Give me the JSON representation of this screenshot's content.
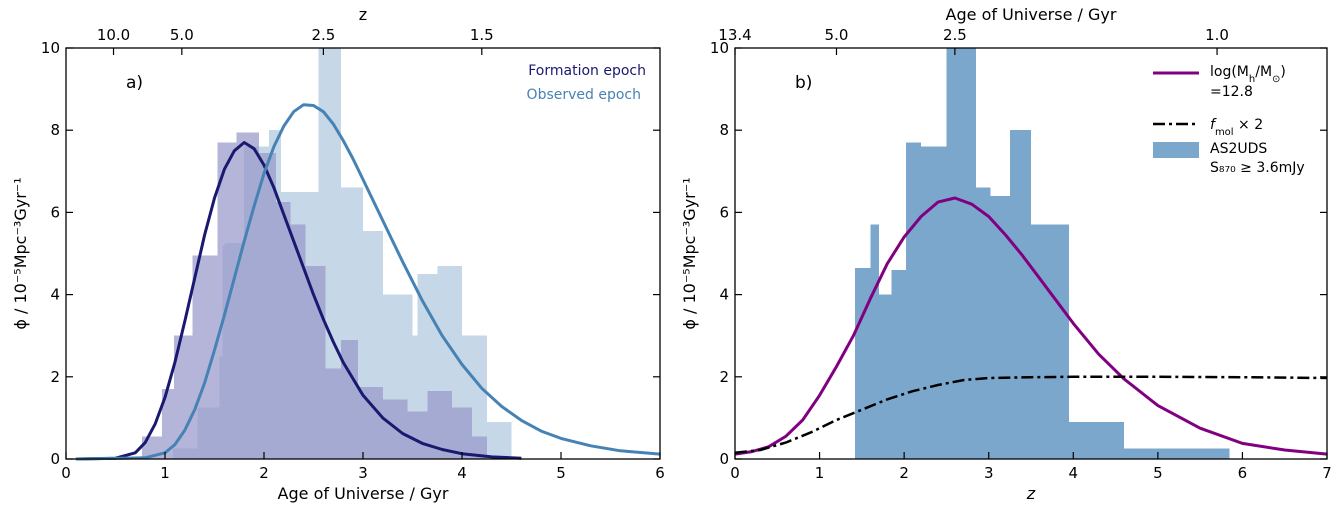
{
  "chart_data": [
    {
      "type": "bar",
      "panel_label": "a)",
      "xlabel": "Age of Universe / Gyr",
      "ylabel": "ϕ / 10⁻⁵Mpc⁻³Gyr⁻¹",
      "top_axis_label": "z",
      "xlim": [
        0,
        6
      ],
      "ylim": [
        0,
        10
      ],
      "x_ticks": [
        0,
        1,
        2,
        3,
        4,
        5,
        6
      ],
      "x_tick_labels": [
        "0",
        "1",
        "2",
        "3",
        "4",
        "5",
        "6"
      ],
      "y_ticks": [
        0,
        2,
        4,
        6,
        8,
        10
      ],
      "y_tick_labels": [
        "0",
        "2",
        "4",
        "6",
        "8",
        "10"
      ],
      "top_ticks": [
        {
          "label": "10.0",
          "x": 0.48
        },
        {
          "label": "5.0",
          "x": 1.17
        },
        {
          "label": "2.5",
          "x": 2.6
        },
        {
          "label": "1.5",
          "x": 4.2
        }
      ],
      "grid": false,
      "legend_placement": "top-right",
      "legend": [
        {
          "name": "Formation epoch",
          "color": "#191970"
        },
        {
          "name": "Observed epoch",
          "color": "#4682B4"
        }
      ],
      "histograms": [
        {
          "name": "Formation epoch",
          "color": "#9999CC",
          "bins": [
            {
              "x0": 0.77,
              "x1": 0.97,
              "y": 0.55
            },
            {
              "x0": 0.97,
              "x1": 1.09,
              "y": 1.7
            },
            {
              "x0": 1.09,
              "x1": 1.28,
              "y": 3.0
            },
            {
              "x0": 1.28,
              "x1": 1.53,
              "y": 4.95
            },
            {
              "x0": 1.53,
              "x1": 1.72,
              "y": 7.7
            },
            {
              "x0": 1.72,
              "x1": 1.95,
              "y": 7.95
            },
            {
              "x0": 1.95,
              "x1": 2.12,
              "y": 7.45
            },
            {
              "x0": 2.12,
              "x1": 2.27,
              "y": 6.25
            },
            {
              "x0": 2.27,
              "x1": 2.42,
              "y": 5.7
            },
            {
              "x0": 2.42,
              "x1": 2.62,
              "y": 4.7
            },
            {
              "x0": 2.62,
              "x1": 2.78,
              "y": 2.2
            },
            {
              "x0": 2.78,
              "x1": 2.95,
              "y": 2.9
            },
            {
              "x0": 2.95,
              "x1": 3.2,
              "y": 1.75
            },
            {
              "x0": 3.2,
              "x1": 3.45,
              "y": 1.45
            },
            {
              "x0": 3.45,
              "x1": 3.65,
              "y": 1.15
            },
            {
              "x0": 3.65,
              "x1": 3.9,
              "y": 1.65
            },
            {
              "x0": 3.9,
              "x1": 4.1,
              "y": 1.25
            },
            {
              "x0": 4.1,
              "x1": 4.25,
              "y": 0.55
            }
          ]
        },
        {
          "name": "Observed epoch",
          "color": "#C3D5E6",
          "bins": [
            {
              "x0": 1.08,
              "x1": 1.33,
              "y": 0.25
            },
            {
              "x0": 1.33,
              "x1": 1.55,
              "y": 1.25
            },
            {
              "x0": 1.55,
              "x1": 1.58,
              "y": 2.5
            },
            {
              "x0": 1.58,
              "x1": 1.6,
              "y": 5.2
            },
            {
              "x0": 1.6,
              "x1": 1.8,
              "y": 5.25
            },
            {
              "x0": 1.8,
              "x1": 2.05,
              "y": 7.6
            },
            {
              "x0": 2.05,
              "x1": 2.17,
              "y": 8.0
            },
            {
              "x0": 2.17,
              "x1": 2.3,
              "y": 6.5
            },
            {
              "x0": 2.3,
              "x1": 2.55,
              "y": 6.5
            },
            {
              "x0": 2.55,
              "x1": 2.78,
              "y": 10.0
            },
            {
              "x0": 2.78,
              "x1": 3.0,
              "y": 6.6
            },
            {
              "x0": 3.0,
              "x1": 3.2,
              "y": 5.55
            },
            {
              "x0": 3.2,
              "x1": 3.5,
              "y": 4.0
            },
            {
              "x0": 3.5,
              "x1": 3.55,
              "y": 3.0
            },
            {
              "x0": 3.55,
              "x1": 3.75,
              "y": 4.5
            },
            {
              "x0": 3.75,
              "x1": 4.0,
              "y": 4.7
            },
            {
              "x0": 4.0,
              "x1": 4.25,
              "y": 3.0
            },
            {
              "x0": 4.25,
              "x1": 4.5,
              "y": 0.9
            }
          ]
        }
      ],
      "series": [
        {
          "name": "Formation epoch",
          "color": "#191970",
          "x": [
            0.1,
            0.5,
            0.7,
            0.8,
            0.9,
            1.0,
            1.1,
            1.2,
            1.3,
            1.4,
            1.5,
            1.6,
            1.7,
            1.8,
            1.9,
            2.0,
            2.1,
            2.2,
            2.3,
            2.4,
            2.5,
            2.6,
            2.7,
            2.8,
            3.0,
            3.2,
            3.4,
            3.6,
            3.8,
            4.0,
            4.3,
            4.6
          ],
          "y": [
            0.0,
            0.02,
            0.15,
            0.4,
            0.85,
            1.5,
            2.35,
            3.35,
            4.4,
            5.45,
            6.35,
            7.05,
            7.5,
            7.7,
            7.55,
            7.15,
            6.6,
            5.95,
            5.3,
            4.65,
            4.0,
            3.4,
            2.85,
            2.35,
            1.55,
            1.0,
            0.62,
            0.38,
            0.23,
            0.13,
            0.05,
            0.02
          ]
        },
        {
          "name": "Observed epoch",
          "color": "#4682B4",
          "x": [
            0.1,
            0.8,
            1.0,
            1.1,
            1.2,
            1.3,
            1.4,
            1.5,
            1.6,
            1.7,
            1.8,
            1.9,
            2.0,
            2.1,
            2.2,
            2.3,
            2.4,
            2.5,
            2.6,
            2.7,
            2.8,
            2.9,
            3.0,
            3.2,
            3.4,
            3.6,
            3.8,
            4.0,
            4.2,
            4.4,
            4.6,
            4.8,
            5.0,
            5.3,
            5.6,
            6.0
          ],
          "y": [
            0.0,
            0.03,
            0.15,
            0.35,
            0.7,
            1.2,
            1.85,
            2.65,
            3.5,
            4.4,
            5.3,
            6.15,
            6.95,
            7.6,
            8.1,
            8.45,
            8.62,
            8.6,
            8.45,
            8.15,
            7.75,
            7.3,
            6.8,
            5.8,
            4.8,
            3.85,
            3.0,
            2.3,
            1.72,
            1.28,
            0.94,
            0.68,
            0.5,
            0.32,
            0.2,
            0.12
          ]
        }
      ]
    },
    {
      "type": "bar",
      "panel_label": "b)",
      "xlabel": "z",
      "ylabel": "ϕ / 10⁻⁵Mpc⁻³Gyr⁻¹",
      "top_axis_label": "Age of Universe / Gyr",
      "xlim": [
        0,
        7
      ],
      "ylim": [
        0,
        10
      ],
      "x_ticks": [
        0,
        1,
        2,
        3,
        4,
        5,
        6,
        7
      ],
      "x_tick_labels": [
        "0",
        "1",
        "2",
        "3",
        "4",
        "5",
        "6",
        "7"
      ],
      "y_ticks": [
        0,
        2,
        4,
        6,
        8,
        10
      ],
      "y_tick_labels": [
        "0",
        "2",
        "4",
        "6",
        "8",
        "10"
      ],
      "top_ticks": [
        {
          "label": "13.4",
          "x": 0.0
        },
        {
          "label": "5.0",
          "x": 1.2
        },
        {
          "label": "2.5",
          "x": 2.6
        },
        {
          "label": "1.0",
          "x": 5.7
        }
      ],
      "grid": false,
      "legend_placement": "top-right",
      "legend": [
        {
          "name_lines": [
            "log(M",
            "=12.8"
          ],
          "color": "#800080",
          "style": "solid"
        },
        {
          "name": "f_mol × 2",
          "color": "#000000",
          "style": "dashdot"
        },
        {
          "name_lines": [
            "AS2UDS",
            "S₈₇₀ ≥ 3.6mJy"
          ],
          "color": "#7BA7CC",
          "style": "patch"
        }
      ],
      "legend_math": {
        "h_sub": "h",
        "sun_sub": "⊙",
        "mol_f": "f",
        "mol_sub": "mol",
        "mol_times": "× 2"
      },
      "histograms": [
        {
          "name": "AS2UDS S870 ≥ 3.6mJy",
          "color": "#7BA7CC",
          "bins": [
            {
              "x0": 1.42,
              "x1": 1.6,
              "y": 4.65
            },
            {
              "x0": 1.6,
              "x1": 1.7,
              "y": 5.7
            },
            {
              "x0": 1.7,
              "x1": 1.85,
              "y": 4.0
            },
            {
              "x0": 1.85,
              "x1": 2.02,
              "y": 4.6
            },
            {
              "x0": 2.02,
              "x1": 2.2,
              "y": 7.7
            },
            {
              "x0": 2.2,
              "x1": 2.5,
              "y": 7.6
            },
            {
              "x0": 2.5,
              "x1": 2.85,
              "y": 10.0
            },
            {
              "x0": 2.85,
              "x1": 3.02,
              "y": 6.6
            },
            {
              "x0": 3.02,
              "x1": 3.25,
              "y": 6.4
            },
            {
              "x0": 3.25,
              "x1": 3.5,
              "y": 8.0
            },
            {
              "x0": 3.5,
              "x1": 3.62,
              "y": 5.7
            },
            {
              "x0": 3.62,
              "x1": 3.95,
              "y": 5.7
            },
            {
              "x0": 3.95,
              "x1": 4.6,
              "y": 0.9
            },
            {
              "x0": 4.6,
              "x1": 5.2,
              "y": 0.25
            },
            {
              "x0": 5.2,
              "x1": 5.85,
              "y": 0.25
            }
          ]
        }
      ],
      "series": [
        {
          "name": "log(Mh/M⊙)=12.8",
          "color": "#800080",
          "style": "solid",
          "x": [
            0.0,
            0.2,
            0.4,
            0.6,
            0.8,
            1.0,
            1.2,
            1.4,
            1.6,
            1.8,
            2.0,
            2.2,
            2.4,
            2.6,
            2.8,
            3.0,
            3.2,
            3.4,
            3.6,
            3.8,
            4.0,
            4.3,
            4.6,
            5.0,
            5.5,
            6.0,
            6.5,
            7.0
          ],
          "y": [
            0.12,
            0.18,
            0.3,
            0.55,
            0.95,
            1.55,
            2.25,
            3.0,
            3.9,
            4.75,
            5.4,
            5.9,
            6.25,
            6.35,
            6.2,
            5.9,
            5.45,
            4.95,
            4.4,
            3.85,
            3.3,
            2.55,
            1.95,
            1.3,
            0.75,
            0.38,
            0.22,
            0.12
          ]
        },
        {
          "name": "f_mol × 2",
          "color": "#000000",
          "style": "dashdot",
          "x": [
            0.0,
            0.3,
            0.6,
            0.9,
            1.2,
            1.5,
            1.8,
            2.1,
            2.4,
            2.7,
            3.0,
            3.5,
            4.0,
            5.0,
            6.0,
            7.0
          ],
          "y": [
            0.15,
            0.22,
            0.4,
            0.65,
            0.95,
            1.2,
            1.45,
            1.65,
            1.8,
            1.92,
            1.97,
            1.99,
            2.0,
            2.0,
            1.99,
            1.97
          ]
        }
      ]
    }
  ]
}
